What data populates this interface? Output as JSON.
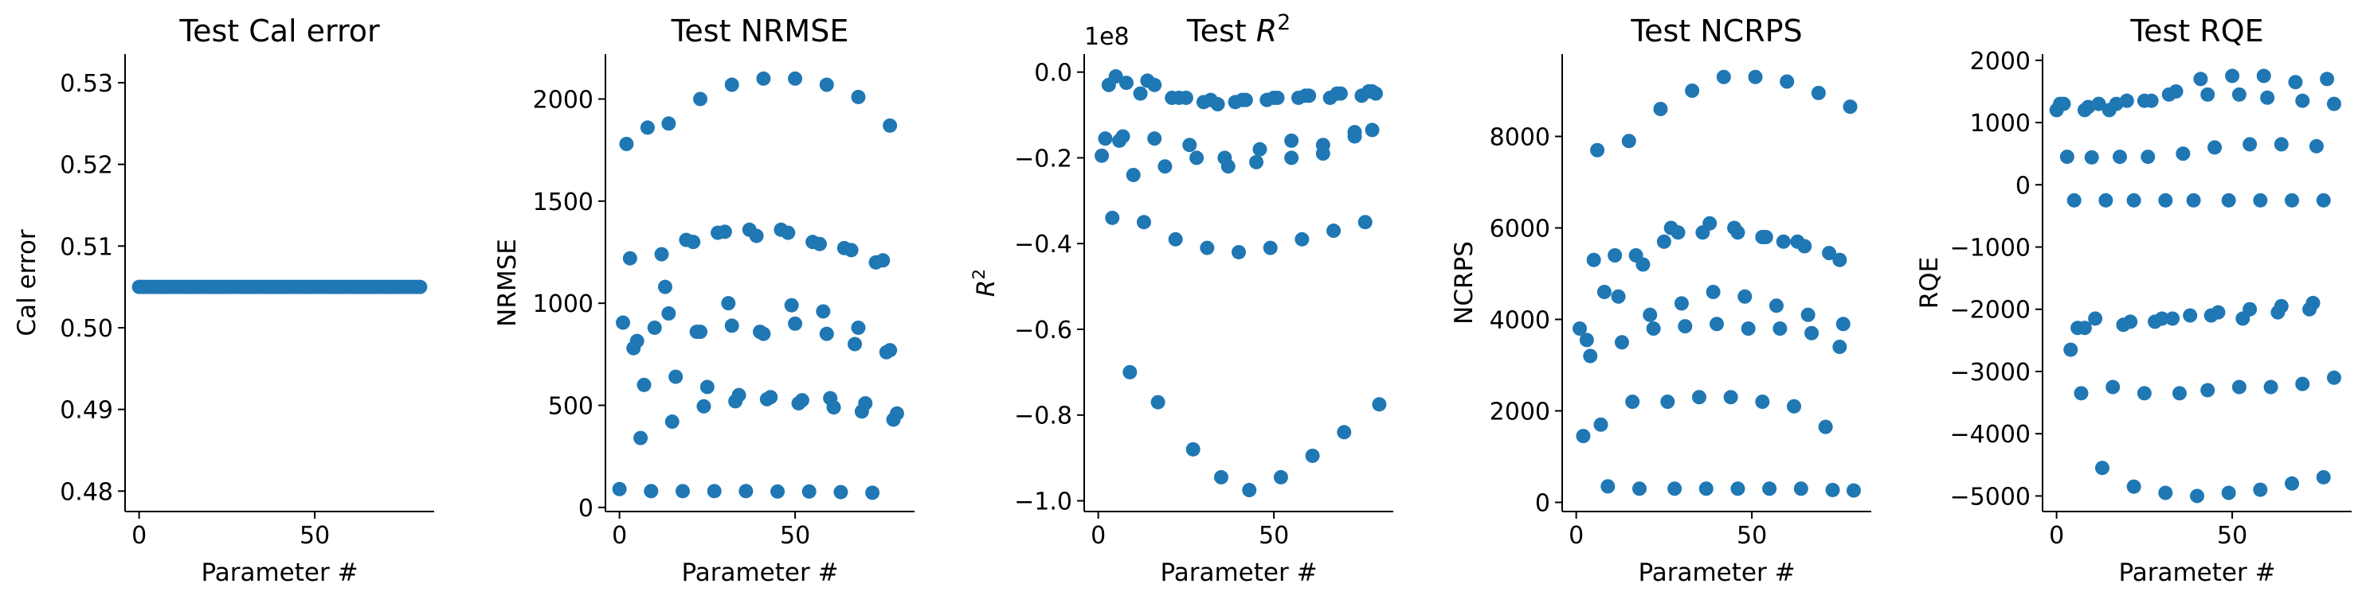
{
  "figure": {
    "marker_color": "#1f77b4"
  },
  "chart_data": [
    {
      "type": "scatter",
      "title": "Test Cal error",
      "xlabel": "Parameter #",
      "ylabel": "Cal error",
      "xlim": [
        -4,
        84
      ],
      "ylim": [
        0.4775,
        0.5335
      ],
      "xticks": [
        0,
        50
      ],
      "yticks": [
        0.48,
        0.49,
        0.5,
        0.51,
        0.52,
        0.53
      ],
      "ytick_labels": [
        "0.48",
        "0.49",
        "0.50",
        "0.51",
        "0.52",
        "0.53"
      ],
      "x": [
        0,
        1,
        2,
        3,
        4,
        5,
        6,
        7,
        8,
        9,
        10,
        11,
        12,
        13,
        14,
        15,
        16,
        17,
        18,
        19,
        20,
        21,
        22,
        23,
        24,
        25,
        26,
        27,
        28,
        29,
        30,
        31,
        32,
        33,
        34,
        35,
        36,
        37,
        38,
        39,
        40,
        41,
        42,
        43,
        44,
        45,
        46,
        47,
        48,
        49,
        50,
        51,
        52,
        53,
        54,
        55,
        56,
        57,
        58,
        59,
        60,
        61,
        62,
        63,
        64,
        65,
        66,
        67,
        68,
        69,
        70,
        71,
        72,
        73,
        74,
        75,
        76,
        77,
        78,
        79,
        80
      ],
      "y": [
        0.505,
        0.505,
        0.505,
        0.505,
        0.505,
        0.505,
        0.505,
        0.505,
        0.505,
        0.505,
        0.505,
        0.505,
        0.505,
        0.505,
        0.505,
        0.505,
        0.505,
        0.505,
        0.505,
        0.505,
        0.505,
        0.505,
        0.505,
        0.505,
        0.505,
        0.505,
        0.505,
        0.505,
        0.505,
        0.505,
        0.505,
        0.505,
        0.505,
        0.505,
        0.505,
        0.505,
        0.505,
        0.505,
        0.505,
        0.505,
        0.505,
        0.505,
        0.505,
        0.505,
        0.505,
        0.505,
        0.505,
        0.505,
        0.505,
        0.505,
        0.505,
        0.505,
        0.505,
        0.505,
        0.505,
        0.505,
        0.505,
        0.505,
        0.505,
        0.505,
        0.505,
        0.505,
        0.505,
        0.505,
        0.505,
        0.505,
        0.505,
        0.505,
        0.505,
        0.505,
        0.505,
        0.505,
        0.505,
        0.505,
        0.505,
        0.505,
        0.505,
        0.505,
        0.505,
        0.505,
        0.505
      ]
    },
    {
      "type": "scatter",
      "title": "Test NRMSE",
      "xlabel": "Parameter #",
      "ylabel": "NRMSE",
      "xlim": [
        -4,
        84
      ],
      "ylim": [
        -20,
        2220
      ],
      "xticks": [
        0,
        50
      ],
      "yticks": [
        0,
        500,
        1000,
        1500,
        2000
      ],
      "ytick_labels": [
        "0",
        "500",
        "1000",
        "1500",
        "2000"
      ],
      "x": [
        2,
        8,
        14,
        23,
        32,
        41,
        50,
        59,
        68,
        77,
        1,
        10,
        19,
        28,
        37,
        46,
        55,
        64,
        73,
        3,
        12,
        21,
        30,
        39,
        48,
        57,
        66,
        75,
        4,
        13,
        22,
        31,
        40,
        49,
        58,
        67,
        76,
        5,
        14,
        23,
        32,
        41,
        50,
        59,
        68,
        77,
        6,
        15,
        24,
        33,
        42,
        51,
        60,
        69,
        78,
        7,
        16,
        25,
        34,
        43,
        52,
        61,
        70,
        79,
        0,
        9,
        18,
        27,
        36,
        45,
        54,
        63,
        72
      ],
      "y": [
        1780,
        1860,
        1880,
        2000,
        2070,
        2100,
        2100,
        2070,
        2010,
        1870,
        905,
        880,
        1310,
        1345,
        1360,
        1360,
        1300,
        1270,
        1200,
        1220,
        1240,
        1300,
        1350,
        1330,
        1345,
        1290,
        1260,
        1210,
        780,
        1080,
        860,
        1000,
        860,
        990,
        960,
        800,
        760,
        815,
        950,
        860,
        890,
        850,
        900,
        850,
        880,
        770,
        340,
        420,
        495,
        520,
        530,
        510,
        535,
        470,
        430,
        600,
        640,
        590,
        550,
        540,
        525,
        490,
        510,
        460,
        90,
        80,
        80,
        80,
        80,
        78,
        78,
        75,
        72
      ]
    },
    {
      "type": "scatter",
      "title": "Test R^2",
      "xlabel": "Parameter #",
      "ylabel": "R^2",
      "offset_text": "1e8",
      "xlim": [
        -4,
        84
      ],
      "ylim": [
        -1.025,
        0.042
      ],
      "xticks": [
        0,
        50
      ],
      "yticks": [
        0.0,
        -0.2,
        -0.4,
        -0.6,
        -0.8,
        -1.0
      ],
      "ytick_labels": [
        "0.0",
        "−0.2",
        "−0.4",
        "−0.6",
        "−0.8",
        "−1.0"
      ],
      "x": [
        2,
        7,
        16,
        26,
        36,
        45,
        55,
        64,
        73,
        79,
        1,
        6,
        10,
        19,
        28,
        37,
        46,
        55,
        64,
        73,
        78,
        3,
        12,
        21,
        30,
        39,
        48,
        57,
        66,
        75,
        4,
        13,
        22,
        31,
        40,
        49,
        58,
        67,
        76,
        5,
        14,
        23,
        32,
        41,
        50,
        59,
        68,
        77,
        9,
        17,
        27,
        35,
        43,
        52,
        61,
        70,
        80,
        8,
        16,
        25,
        34,
        42,
        51,
        60,
        69,
        78
      ],
      "y": [
        -0.155,
        -0.15,
        -0.155,
        -0.17,
        -0.2,
        -0.21,
        -0.2,
        -0.17,
        -0.14,
        -0.05,
        -0.195,
        -0.16,
        -0.24,
        -0.22,
        -0.2,
        -0.22,
        -0.18,
        -0.16,
        -0.19,
        -0.15,
        -0.135,
        -0.03,
        -0.05,
        -0.06,
        -0.07,
        -0.07,
        -0.065,
        -0.06,
        -0.06,
        -0.055,
        -0.34,
        -0.35,
        -0.39,
        -0.41,
        -0.42,
        -0.41,
        -0.39,
        -0.37,
        -0.35,
        -0.01,
        -0.02,
        -0.06,
        -0.065,
        -0.065,
        -0.06,
        -0.055,
        -0.05,
        -0.045,
        -0.7,
        -0.77,
        -0.88,
        -0.945,
        -0.975,
        -0.945,
        -0.895,
        -0.84,
        -0.775,
        -0.025,
        -0.03,
        -0.06,
        -0.075,
        -0.065,
        -0.06,
        -0.055,
        -0.05,
        -0.045
      ]
    },
    {
      "type": "scatter",
      "title": "Test NCRPS",
      "xlabel": "Parameter #",
      "ylabel": "NCRPS",
      "xlim": [
        -4,
        84
      ],
      "ylim": [
        -200,
        9800
      ],
      "xticks": [
        0,
        50
      ],
      "yticks": [
        0,
        2000,
        4000,
        6000,
        8000
      ],
      "ytick_labels": [
        "0",
        "2000",
        "4000",
        "6000",
        "8000"
      ],
      "x": [
        6,
        15,
        24,
        33,
        42,
        51,
        60,
        69,
        78,
        5,
        11,
        19,
        25,
        29,
        38,
        46,
        53,
        59,
        65,
        75,
        1,
        8,
        17,
        27,
        36,
        45,
        54,
        63,
        72,
        3,
        12,
        21,
        30,
        39,
        48,
        57,
        66,
        75,
        4,
        13,
        22,
        31,
        40,
        49,
        58,
        67,
        76,
        2,
        7,
        16,
        26,
        35,
        44,
        53,
        62,
        71,
        9,
        18,
        28,
        37,
        46,
        55,
        64,
        73,
        79
      ],
      "y": [
        7700,
        7900,
        8600,
        9000,
        9300,
        9300,
        9200,
        8950,
        8650,
        5300,
        5400,
        5200,
        5700,
        5900,
        6100,
        5900,
        5800,
        5700,
        5600,
        5300,
        3800,
        4600,
        5400,
        6000,
        5900,
        6000,
        5800,
        5700,
        5450,
        3550,
        4500,
        4100,
        4350,
        4600,
        4500,
        4300,
        4100,
        3400,
        3200,
        3500,
        3800,
        3850,
        3900,
        3800,
        3800,
        3700,
        3900,
        1450,
        1700,
        2200,
        2200,
        2300,
        2300,
        2200,
        2100,
        1650,
        350,
        300,
        300,
        300,
        300,
        300,
        300,
        270,
        260
      ]
    },
    {
      "type": "scatter",
      "title": "Test RQE",
      "xlabel": "Parameter #",
      "ylabel": "RQE",
      "xlim": [
        -4,
        84
      ],
      "ylim": [
        -5250,
        2100
      ],
      "xticks": [
        0,
        50
      ],
      "yticks": [
        2000,
        1000,
        0,
        -1000,
        -2000,
        -3000,
        -4000,
        -5000
      ],
      "ytick_labels": [
        "2000",
        "1000",
        "0",
        "−1000",
        "−2000",
        "−3000",
        "−4000",
        "−5000"
      ],
      "x": [
        0,
        2,
        9,
        12,
        17,
        20,
        27,
        32,
        41,
        50,
        59,
        68,
        77,
        1,
        8,
        15,
        25,
        34,
        43,
        52,
        60,
        70,
        79,
        3,
        10,
        18,
        26,
        36,
        45,
        55,
        64,
        74,
        5,
        14,
        22,
        31,
        39,
        49,
        58,
        67,
        76,
        6,
        11,
        21,
        30,
        38,
        46,
        55,
        64,
        73,
        4,
        8,
        19,
        28,
        33,
        44,
        53,
        63,
        72,
        7,
        16,
        25,
        35,
        43,
        52,
        61,
        70,
        79,
        13,
        22,
        31,
        40,
        49,
        58,
        67,
        76
      ],
      "y": [
        1200,
        1300,
        1250,
        1300,
        1300,
        1350,
        1350,
        1450,
        1700,
        1750,
        1750,
        1650,
        1700,
        1300,
        1200,
        1200,
        1350,
        1500,
        1450,
        1450,
        1400,
        1350,
        1300,
        450,
        440,
        450,
        450,
        500,
        600,
        650,
        650,
        620,
        -250,
        -250,
        -250,
        -250,
        -250,
        -250,
        -250,
        -250,
        -250,
        -2300,
        -2150,
        -2200,
        -2150,
        -2100,
        -2050,
        -2000,
        -1950,
        -1900,
        -2650,
        -2300,
        -2250,
        -2200,
        -2150,
        -2100,
        -2150,
        -2050,
        -2000,
        -3350,
        -3250,
        -3350,
        -3350,
        -3300,
        -3250,
        -3250,
        -3200,
        -3100,
        -4550,
        -4850,
        -4950,
        -5000,
        -4950,
        -4900,
        -4800,
        -4700
      ]
    }
  ]
}
